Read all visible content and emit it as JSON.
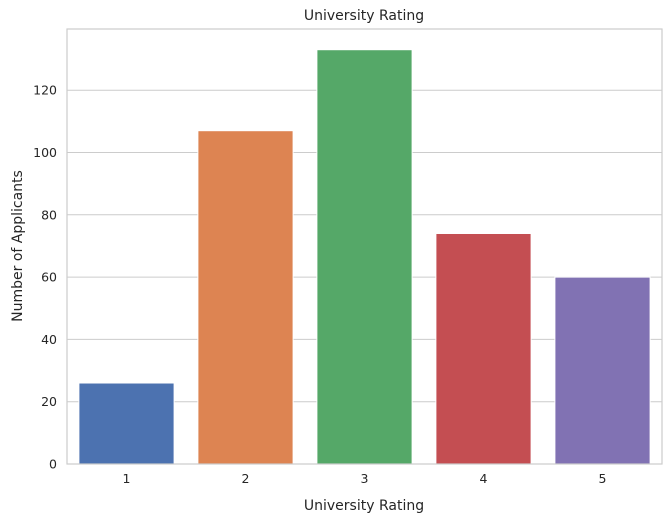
{
  "chart_data": {
    "type": "bar",
    "title": "University Rating",
    "xlabel": "University Rating",
    "ylabel": "Number of Applicants",
    "categories": [
      "1",
      "2",
      "3",
      "4",
      "5"
    ],
    "values": [
      26,
      107,
      133,
      74,
      60
    ],
    "colors": [
      "#4c72b0",
      "#dd8452",
      "#55a868",
      "#c44e52",
      "#8172b3"
    ],
    "ylim": [
      0,
      139.65
    ],
    "yticks": [
      0,
      20,
      40,
      60,
      80,
      100,
      120
    ],
    "grid": true,
    "legend": "none"
  }
}
